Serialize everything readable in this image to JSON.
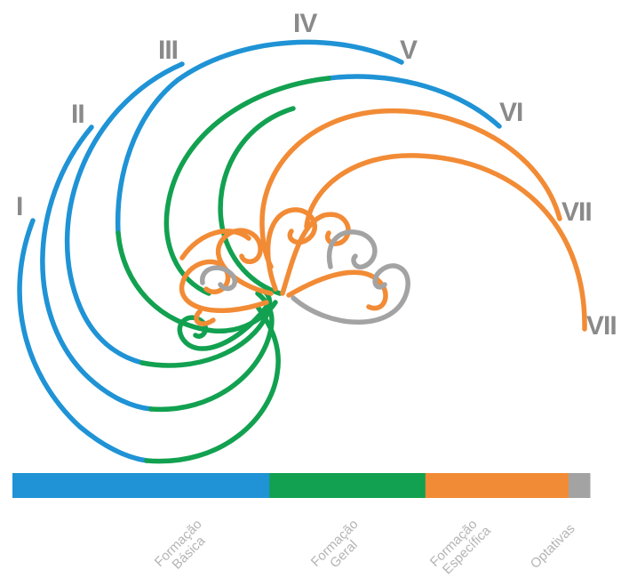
{
  "colors": {
    "formacao_basica": "#1f93d5",
    "formacao_geral": "#12a150",
    "formacao_especifica": "#f28b35",
    "optativas": "#a3a3a3",
    "label_gray": "#8a8a8a"
  },
  "semesters": [
    {
      "label": "I"
    },
    {
      "label": "II"
    },
    {
      "label": "III"
    },
    {
      "label": "IV"
    },
    {
      "label": "V"
    },
    {
      "label": "VI"
    },
    {
      "label": "VII"
    },
    {
      "label": "VII"
    }
  ],
  "legend": {
    "categories": [
      {
        "line1": "Formação",
        "line2": "Básica",
        "color": "#1f93d5",
        "share": 0.445
      },
      {
        "line1": "Formação",
        "line2": "Geral",
        "color": "#12a150",
        "share": 0.27
      },
      {
        "line1": "Formação",
        "line2": "Específica",
        "color": "#f28b35",
        "share": 0.248
      },
      {
        "line1": "Optativas",
        "line2": "",
        "color": "#a3a3a3",
        "share": 0.037
      }
    ]
  }
}
